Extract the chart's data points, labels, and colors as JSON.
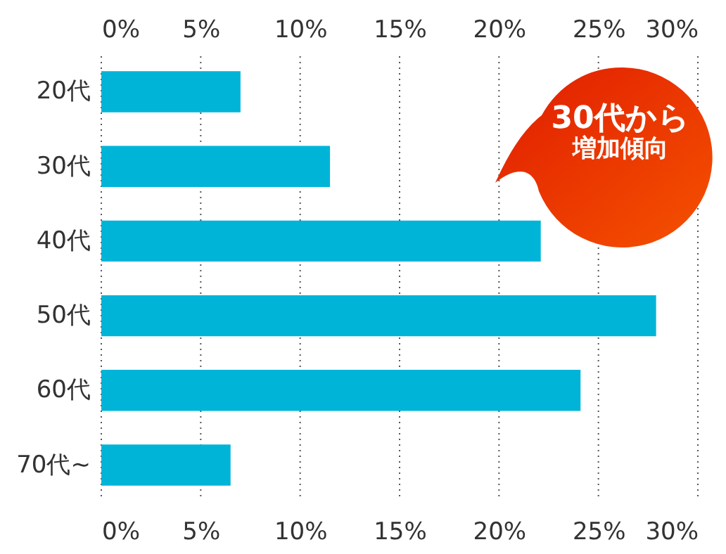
{
  "chart_data": {
    "type": "bar",
    "orientation": "horizontal",
    "categories": [
      "20代",
      "30代",
      "40代",
      "50代",
      "60代",
      "70代~"
    ],
    "values": [
      7.0,
      11.5,
      22.1,
      27.9,
      24.1,
      6.5
    ],
    "color": "#00b4d8",
    "xlim": [
      0,
      30
    ],
    "xticks": [
      {
        "value": 0,
        "label": "0%"
      },
      {
        "value": 5,
        "label": "5%"
      },
      {
        "value": 10,
        "label": "10%"
      },
      {
        "value": 15,
        "label": "15%"
      },
      {
        "value": 20,
        "label": "20%"
      },
      {
        "value": 25,
        "label": "25%"
      },
      {
        "value": 30,
        "label": "30%"
      }
    ],
    "x2lim": [
      0,
      30
    ],
    "x2ticks": [
      {
        "value": 0,
        "label": "0%"
      },
      {
        "value": 5,
        "label": "5%"
      },
      {
        "value": 10,
        "label": "10%"
      },
      {
        "value": 15,
        "label": "15%"
      },
      {
        "value": 20,
        "label": "20%"
      },
      {
        "value": 25,
        "label": "25%"
      },
      {
        "value": 30,
        "label": "30%"
      }
    ],
    "grid": "x",
    "annotations": [
      "30代から",
      "増加傾向"
    ]
  }
}
